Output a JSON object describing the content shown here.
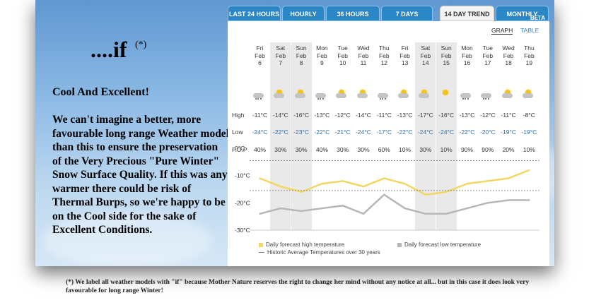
{
  "slide": {
    "title": "....if",
    "title_mark": "(*)",
    "headline": "Cool And Excellent!",
    "body": "We can't imagine a better, more favourable long range Weather model than this to ensure the preservation of the Very Precious \"Pure Winter\" Snow Surface Quality. If this was any warmer there could be risk of Thermal Burps, so we're happy to be on the Cool side for the sake of Excellent Conditions."
  },
  "tabs": [
    {
      "label": "LAST 24 HOURS",
      "active": false
    },
    {
      "label": "HOURLY",
      "active": false
    },
    {
      "label": "36 HOURS",
      "active": false
    },
    {
      "label": "7 DAYS",
      "active": false
    },
    {
      "label": "14 DAY TREND",
      "active": true
    },
    {
      "label": "MONTHLY",
      "badge": "BETA",
      "active": false
    }
  ],
  "view_toggle": {
    "graph": "GRAPH",
    "table": "TABLE"
  },
  "row_labels": {
    "high": "High",
    "low": "Low",
    "pop": "P.O.P"
  },
  "days": [
    {
      "dow": "Fri",
      "month": "Feb",
      "date": "6",
      "icon": "snow-cloud-icon",
      "high": "-11°C",
      "low": "-24°C",
      "pop": "40%",
      "weekend": false
    },
    {
      "dow": "Sat",
      "month": "Feb",
      "date": "7",
      "icon": "sun-cloud-icon",
      "high": "-14°C",
      "low": "-22°C",
      "pop": "30%",
      "weekend": true
    },
    {
      "dow": "Sun",
      "month": "Feb",
      "date": "8",
      "icon": "sun-cloud-icon",
      "high": "-16°C",
      "low": "-23°C",
      "pop": "30%",
      "weekend": true
    },
    {
      "dow": "Mon",
      "month": "Feb",
      "date": "9",
      "icon": "snow-cloud-icon",
      "high": "-13°C",
      "low": "-22°C",
      "pop": "40%",
      "weekend": false
    },
    {
      "dow": "Tue",
      "month": "Feb",
      "date": "10",
      "icon": "sun-cloud-icon",
      "high": "-12°C",
      "low": "-21°C",
      "pop": "30%",
      "weekend": false
    },
    {
      "dow": "Wed",
      "month": "Feb",
      "date": "11",
      "icon": "sun-cloud-icon",
      "high": "-14°C",
      "low": "-24°C",
      "pop": "30%",
      "weekend": false
    },
    {
      "dow": "Thu",
      "month": "Feb",
      "date": "12",
      "icon": "snow-cloud-icon",
      "high": "-11°C",
      "low": "-17°C",
      "pop": "60%",
      "weekend": false
    },
    {
      "dow": "Fri",
      "month": "Feb",
      "date": "13",
      "icon": "sun-cloud-icon",
      "high": "-13°C",
      "low": "-22°C",
      "pop": "10%",
      "weekend": false
    },
    {
      "dow": "Sat",
      "month": "Feb",
      "date": "14",
      "icon": "sun-cloud-icon",
      "high": "-17°C",
      "low": "-24°C",
      "pop": "30%",
      "weekend": true
    },
    {
      "dow": "Sun",
      "month": "Feb",
      "date": "15",
      "icon": "sun-icon",
      "high": "-16°C",
      "low": "-24°C",
      "pop": "10%",
      "weekend": true
    },
    {
      "dow": "Mon",
      "month": "Feb",
      "date": "16",
      "icon": "snow-cloud-icon",
      "high": "-13°C",
      "low": "-22°C",
      "pop": "90%",
      "weekend": false
    },
    {
      "dow": "Tue",
      "month": "Feb",
      "date": "17",
      "icon": "snow-cloud-icon",
      "high": "-12°C",
      "low": "-20°C",
      "pop": "90%",
      "weekend": false
    },
    {
      "dow": "Wed",
      "month": "Feb",
      "date": "18",
      "icon": "sun-cloud-icon",
      "high": "-11°C",
      "low": "-19°C",
      "pop": "20%",
      "weekend": false
    },
    {
      "dow": "Thu",
      "month": "Feb",
      "date": "19",
      "icon": "sun-cloud-icon",
      "high": "-8°C",
      "low": "-19°C",
      "pop": "10%",
      "weekend": false
    }
  ],
  "chart_data": {
    "type": "line",
    "x": [
      "Fri Feb 6",
      "Sat Feb 7",
      "Sun Feb 8",
      "Mon Feb 9",
      "Tue Feb 10",
      "Wed Feb 11",
      "Thu Feb 12",
      "Fri Feb 13",
      "Sat Feb 14",
      "Sun Feb 15",
      "Mon Feb 16",
      "Tue Feb 17",
      "Wed Feb 18",
      "Thu Feb 19"
    ],
    "ylim": [
      -30,
      0
    ],
    "yticks": [
      "0°C",
      "-10°C",
      "-20°C",
      "-30°C"
    ],
    "series": [
      {
        "name": "Daily forecast high temperature",
        "color": "#f2d764",
        "values": [
          -11,
          -14,
          -16,
          -13,
          -12,
          -14,
          -11,
          -13,
          -17,
          -16,
          -13,
          -12,
          -11,
          -8
        ]
      },
      {
        "name": "Daily forecast low temperature",
        "color": "#b7b7b7",
        "values": [
          -24,
          -22,
          -23,
          -22,
          -21,
          -24,
          -17,
          -22,
          -24,
          -24,
          -22,
          -20,
          -19,
          -19
        ]
      },
      {
        "name": "Historic Average Temperatures over 30 years",
        "color": "#888888",
        "style": "dotted",
        "values": [
          -4.5,
          -4.5,
          -4.5,
          -4.5,
          -4.5,
          -4.5,
          -4.5,
          -4.5,
          -4.5,
          -4.5,
          -4.5,
          -4.5,
          -4.5,
          -4.5
        ]
      },
      {
        "name": "",
        "color": "#888888",
        "style": "dotted",
        "values": [
          -15.5,
          -15.5,
          -15.5,
          -15.5,
          -15.5,
          -15.5,
          -15.5,
          -15.5,
          -15.5,
          -15.5,
          -15.5,
          -15.5,
          -15.5,
          -15.5
        ]
      }
    ]
  },
  "footnote": "(*)  We label all weather models with \"if\" because Mother Nature reserves the right to change her mind without any notice at all... but in this case it does look very favourable for long range Winter!"
}
